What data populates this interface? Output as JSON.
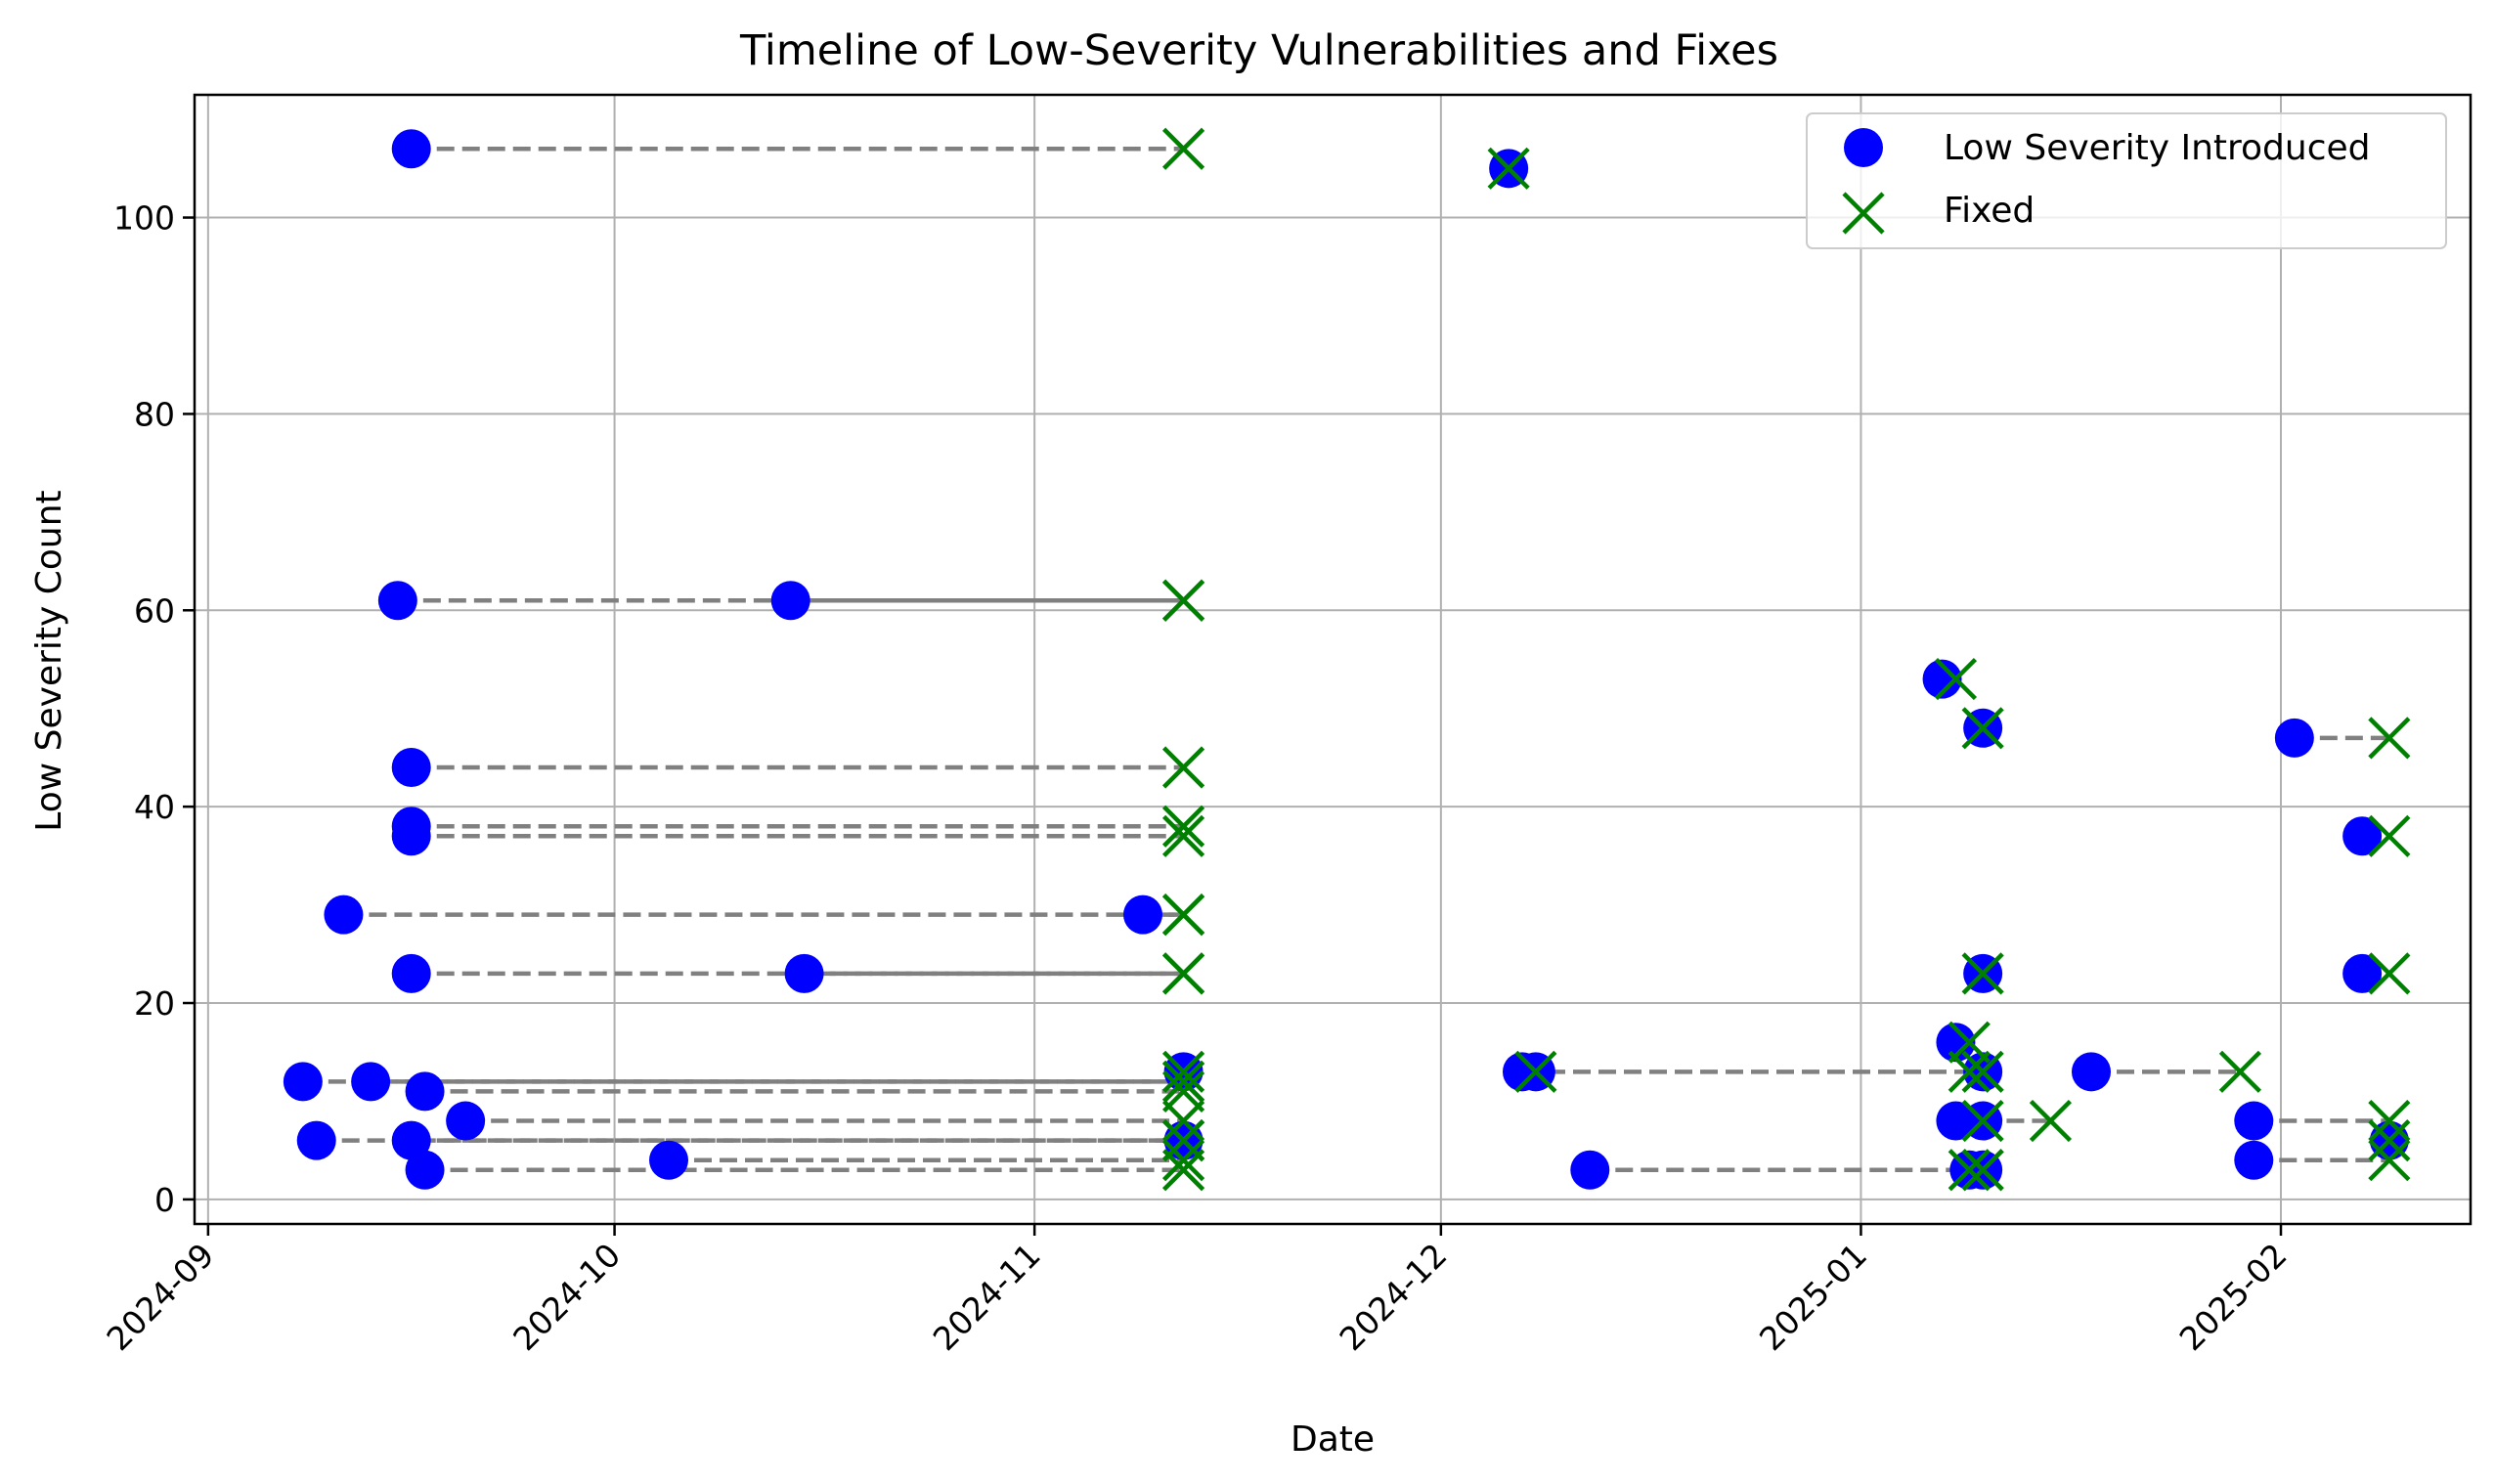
{
  "chart_data": {
    "type": "scatter",
    "title": "Timeline of Low-Severity Vulnerabilities and Fixes",
    "xlabel": "Date",
    "ylabel": "Low Severity Count",
    "x_type": "date",
    "xlim": [
      "2024-08-31",
      "2025-02-15"
    ],
    "ylim": [
      -2.5,
      112.5
    ],
    "x_ticks": [
      "2024-09",
      "2024-10",
      "2024-11",
      "2024-12",
      "2025-01",
      "2025-02"
    ],
    "x_tick_dates": [
      "2024-09-01",
      "2024-10-01",
      "2024-11-01",
      "2024-12-01",
      "2025-01-01",
      "2025-02-01"
    ],
    "y_ticks": [
      0,
      20,
      40,
      60,
      80,
      100
    ],
    "grid": true,
    "legend_position": "top-right",
    "colors": {
      "introduced": "#0000ff",
      "fixed": "#008000",
      "connector": "#808080"
    },
    "series": [
      {
        "name": "Low Severity Introduced",
        "marker": "circle"
      },
      {
        "name": "Fixed",
        "marker": "x"
      }
    ],
    "items": [
      {
        "introduced": "2024-09-16",
        "fixed": "2024-11-12",
        "count": 107
      },
      {
        "introduced": "2024-12-06",
        "fixed": "2024-12-06",
        "count": 105
      },
      {
        "introduced": "2024-09-15",
        "fixed": "2024-11-12",
        "count": 61
      },
      {
        "introduced": "2024-10-14",
        "fixed": "2024-11-12",
        "count": 61
      },
      {
        "introduced": "2025-01-07",
        "fixed": "2025-01-08",
        "count": 53
      },
      {
        "introduced": "2025-01-10",
        "fixed": "2025-01-10",
        "count": 48
      },
      {
        "introduced": "2025-02-02",
        "fixed": "2025-02-09",
        "count": 47
      },
      {
        "introduced": "2024-09-16",
        "fixed": "2024-11-12",
        "count": 44
      },
      {
        "introduced": "2024-09-16",
        "fixed": "2024-11-12",
        "count": 38
      },
      {
        "introduced": "2024-09-16",
        "fixed": "2024-11-12",
        "count": 37
      },
      {
        "introduced": "2025-02-07",
        "fixed": "2025-02-09",
        "count": 37
      },
      {
        "introduced": "2024-09-11",
        "fixed": "2024-11-12",
        "count": 29
      },
      {
        "introduced": "2024-11-09",
        "fixed": "2024-11-12",
        "count": 29
      },
      {
        "introduced": "2024-09-16",
        "fixed": "2024-11-12",
        "count": 23
      },
      {
        "introduced": "2024-10-15",
        "fixed": "2024-11-12",
        "count": 23
      },
      {
        "introduced": "2025-01-10",
        "fixed": "2025-01-10",
        "count": 23
      },
      {
        "introduced": "2025-02-07",
        "fixed": "2025-02-09",
        "count": 23
      },
      {
        "introduced": "2025-01-08",
        "fixed": "2025-01-09",
        "count": 16
      },
      {
        "introduced": "2024-09-08",
        "fixed": "2024-11-12",
        "count": 12
      },
      {
        "introduced": "2024-09-13",
        "fixed": "2024-11-12",
        "count": 12
      },
      {
        "introduced": "2024-09-17",
        "fixed": "2024-11-12",
        "count": 11
      },
      {
        "introduced": "2024-11-12",
        "fixed": "2024-11-12",
        "count": 13
      },
      {
        "introduced": "2024-12-07",
        "fixed": "2025-01-09",
        "count": 13
      },
      {
        "introduced": "2024-12-08",
        "fixed": "2024-12-08",
        "count": 13
      },
      {
        "introduced": "2025-01-10",
        "fixed": "2025-01-10",
        "count": 13
      },
      {
        "introduced": "2025-01-18",
        "fixed": "2025-01-29",
        "count": 13
      },
      {
        "introduced": "2024-09-20",
        "fixed": "2024-11-12",
        "count": 8
      },
      {
        "introduced": "2025-01-08",
        "fixed": "2025-01-15",
        "count": 8
      },
      {
        "introduced": "2025-01-10",
        "fixed": "2025-01-10",
        "count": 8
      },
      {
        "introduced": "2025-01-30",
        "fixed": "2025-02-09",
        "count": 8
      },
      {
        "introduced": "2024-09-09",
        "fixed": "2024-11-12",
        "count": 6
      },
      {
        "introduced": "2024-09-16",
        "fixed": "2024-11-12",
        "count": 6
      },
      {
        "introduced": "2024-11-12",
        "fixed": "2024-11-12",
        "count": 6
      },
      {
        "introduced": "2025-02-09",
        "fixed": "2025-02-09",
        "count": 6
      },
      {
        "introduced": "2024-10-05",
        "fixed": "2024-11-12",
        "count": 4
      },
      {
        "introduced": "2025-01-30",
        "fixed": "2025-02-09",
        "count": 4
      },
      {
        "introduced": "2024-09-17",
        "fixed": "2024-11-12",
        "count": 3
      },
      {
        "introduced": "2024-12-12",
        "fixed": "2025-01-09",
        "count": 3
      },
      {
        "introduced": "2025-01-09",
        "fixed": "2025-01-10",
        "count": 3
      },
      {
        "introduced": "2025-01-10",
        "fixed": "2025-01-10",
        "count": 3
      }
    ]
  }
}
